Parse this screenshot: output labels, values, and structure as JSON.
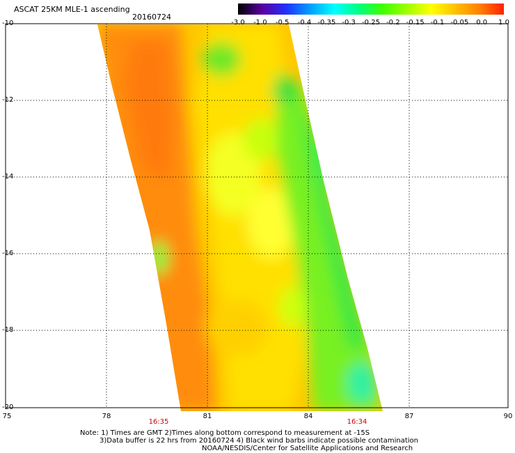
{
  "title": "ASCAT 25KM MLE-1 ascending",
  "date": "20160724",
  "colorbar": {
    "labels": [
      "-3.0",
      "-1.0",
      "-0.5",
      "-0.4",
      "-0.35",
      "-0.3",
      "-0.25",
      "-0.2",
      "-0.15",
      "-0.1",
      "-0.05",
      "0.0",
      "1.0"
    ],
    "colors": [
      "#000000",
      "#5a00a0",
      "#2030ff",
      "#00a0ff",
      "#00ffff",
      "#00ff80",
      "#40ff00",
      "#a0ff00",
      "#ffff00",
      "#ffc000",
      "#ff8000",
      "#ff2000"
    ]
  },
  "latitude_labels": [
    "-10",
    "-12",
    "-14",
    "-16",
    "-18",
    "-20"
  ],
  "longitude_labels": [
    "75",
    "78",
    "81",
    "84",
    "87",
    "90"
  ],
  "time_labels": [
    "16:35",
    "16:34"
  ],
  "notes": [
    "Note: 1) Times are GMT 2)Times along bottom correspond to measurement at -15S",
    "3)Data buffer is 22 hrs from 20160724 4) Black wind barbs indicate possible contamination",
    "NOAA/NESDIS/Center for Satellite Applications and Research"
  ],
  "colors": {
    "time_labels": "#cc0000"
  }
}
